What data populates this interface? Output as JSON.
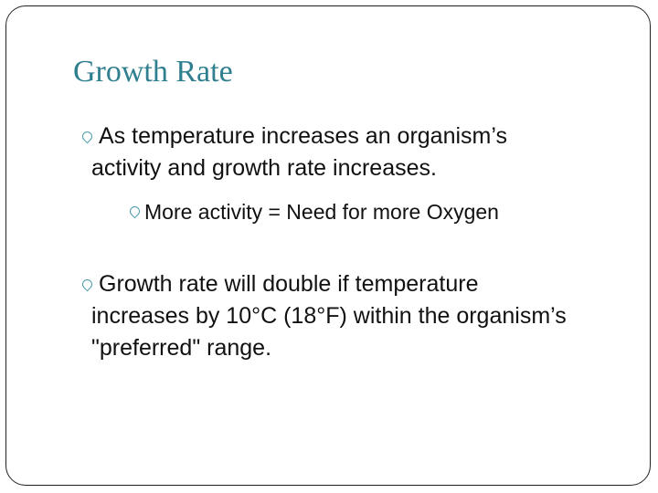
{
  "slide": {
    "title": "Growth Rate",
    "bullets": [
      {
        "text": "As temperature increases an organism’s activity and growth rate increases.",
        "subbullets": [
          "More activity = Need for more Oxygen"
        ]
      },
      {
        "text": "Growth rate will double if temperature increases by 10°C (18°F) within the organism’s \"preferred\" range."
      }
    ]
  }
}
